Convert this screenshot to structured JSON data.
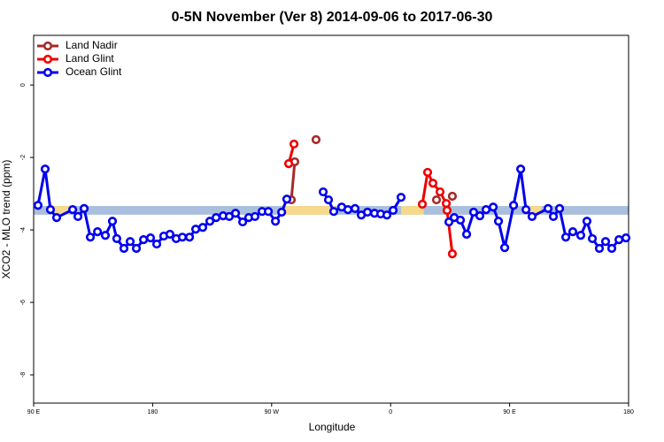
{
  "chart_data": {
    "type": "line",
    "title": "0-5N November (Ver 8)   2014-09-06 to 2017-06-30",
    "x_label": "Longitude",
    "y_label": "XCO2 - MLO trend (ppm)",
    "xlim": [
      90,
      540
    ],
    "ylim": [
      -8.78,
      1.37
    ],
    "xticks": [
      {
        "value": 90,
        "label": "90 E"
      },
      {
        "value": 180,
        "label": "180"
      },
      {
        "value": 270,
        "label": "90 W"
      },
      {
        "value": 360,
        "label": "0"
      },
      {
        "value": 450,
        "label": "90 E"
      },
      {
        "value": 540,
        "label": "180"
      }
    ],
    "yticks": [
      0,
      -2,
      -4,
      -6,
      -8
    ],
    "legend_position": "top-left",
    "reference_band": {
      "ylim": [
        -3.58,
        -3.34
      ],
      "segments": [
        {
          "xlim": [
            90,
            540
          ],
          "color": "#a9bfdd"
        },
        {
          "xlim": [
            103,
            117
          ],
          "color": "#f7d98c"
        },
        {
          "xlim": [
            279,
            318
          ],
          "color": "#f7d98c"
        },
        {
          "xlim": [
            368,
            385
          ],
          "color": "#f7d98c"
        },
        {
          "xlim": [
            462,
            474
          ],
          "color": "#f7d98c"
        }
      ]
    },
    "series": [
      {
        "name": "Land Nadir",
        "color": "#a52a2a",
        "x": [
          284.9,
          287.5,
          null,
          303.6,
          null,
          394.7,
          null,
          406.7
        ],
        "values": [
          -3.17,
          -2.12,
          null,
          -1.51,
          null,
          -3.17,
          null,
          -3.07
        ]
      },
      {
        "name": "Land Glint",
        "color": "#ee0000",
        "x": [
          282.9,
          286.9,
          null,
          384.0,
          388.0,
          392.0,
          397.4,
          402.1,
          402.7,
          406.7
        ],
        "values": [
          -2.17,
          -1.63,
          null,
          -3.29,
          -2.41,
          -2.71,
          -2.95,
          -3.27,
          -3.46,
          -4.66
        ]
      },
      {
        "name": "Ocean Glint",
        "color": "#0000ee",
        "x": [
          93.3,
          98.7,
          102.7,
          107.4,
          119.5,
          123.5,
          128.2,
          132.9,
          138.3,
          144.2,
          149.6,
          152.9,
          158.3,
          163.0,
          167.7,
          173.1,
          178.4,
          183.1,
          188.4,
          193.1,
          197.8,
          202.5,
          207.9,
          212.6,
          217.9,
          223.3,
          228.0,
          233.3,
          238.0,
          242.7,
          248.1,
          252.7,
          257.4,
          262.8,
          267.5,
          272.9,
          277.6,
          281.5,
          null,
          309.0,
          313.0,
          317.0,
          323.0,
          327.7,
          333.1,
          337.8,
          342.5,
          347.8,
          352.5,
          357.2,
          361.9,
          367.9,
          null,
          404.1,
          408.1,
          412.8,
          417.5,
          422.8,
          427.5,
          432.2,
          437.6,
          441.6,
          446.3,
          453.0,
          458.4,
          462.4,
          467.0,
          479.1,
          483.1,
          487.8,
          492.5,
          497.8,
          503.8,
          508.5,
          512.6,
          517.9,
          522.6,
          527.3,
          532.7,
          538.0
        ],
        "values": [
          -3.32,
          -2.32,
          -3.44,
          -3.66,
          -3.44,
          -3.63,
          -3.41,
          -4.2,
          -4.05,
          -4.15,
          -3.76,
          -4.24,
          -4.51,
          -4.32,
          -4.51,
          -4.27,
          -4.22,
          -4.39,
          -4.17,
          -4.12,
          -4.24,
          -4.2,
          -4.2,
          -3.98,
          -3.93,
          -3.76,
          -3.66,
          -3.61,
          -3.63,
          -3.54,
          -3.78,
          -3.66,
          -3.63,
          -3.49,
          -3.49,
          -3.76,
          -3.51,
          -3.15,
          null,
          -2.95,
          -3.17,
          -3.49,
          -3.37,
          -3.44,
          -3.41,
          -3.59,
          -3.51,
          -3.54,
          -3.56,
          -3.59,
          -3.46,
          -3.1,
          null,
          -3.78,
          -3.66,
          -3.73,
          -4.12,
          -3.51,
          -3.61,
          -3.44,
          -3.37,
          -3.76,
          -4.49,
          -3.32,
          -2.32,
          -3.44,
          -3.63,
          -3.41,
          -3.63,
          -3.41,
          -4.2,
          -4.05,
          -4.15,
          -3.76,
          -4.24,
          -4.51,
          -4.32,
          -4.51,
          -4.27,
          -4.22
        ]
      }
    ]
  }
}
